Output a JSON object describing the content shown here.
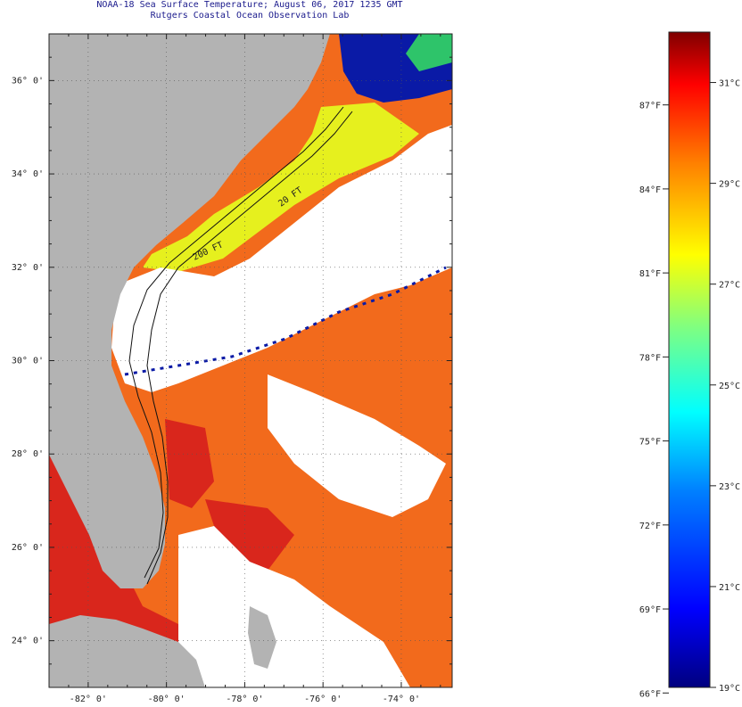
{
  "title": {
    "line1": "NOAA-18 Sea Surface Temperature;  August 06, 2017 1235 GMT",
    "line2": "Rutgers Coastal Ocean Observation Lab"
  },
  "map": {
    "lat_range": [
      23.0,
      37.0
    ],
    "lon_range": [
      -83.0,
      -72.7
    ],
    "lat_labels": [
      "24° 0'",
      "26° 0'",
      "28° 0'",
      "30° 0'",
      "32° 0'",
      "34° 0'",
      "36° 0'"
    ],
    "lon_labels": [
      "-82° 0'",
      "-80° 0'",
      "-78° 0'",
      "-76° 0'",
      "-74° 0'"
    ],
    "contour_labels": [
      "200 FT",
      "20 FT"
    ],
    "colors": {
      "land": "#b3b3b3",
      "cloud": "#ffffff",
      "sea_warm": "#f26a1c",
      "sea_hot": "#d9261c",
      "shelf_yellow": "#e6f01e",
      "cold_blue": "#0a1aa6"
    }
  },
  "colorbar": {
    "fahrenheit_labels": [
      "87°F",
      "84°F",
      "81°F",
      "78°F",
      "75°F",
      "72°F",
      "69°F",
      "66°F"
    ],
    "celsius_labels": [
      "31°C",
      "29°C",
      "27°C",
      "25°C",
      "23°C",
      "21°C",
      "19°C"
    ],
    "min_c": 19,
    "max_c": 32
  }
}
